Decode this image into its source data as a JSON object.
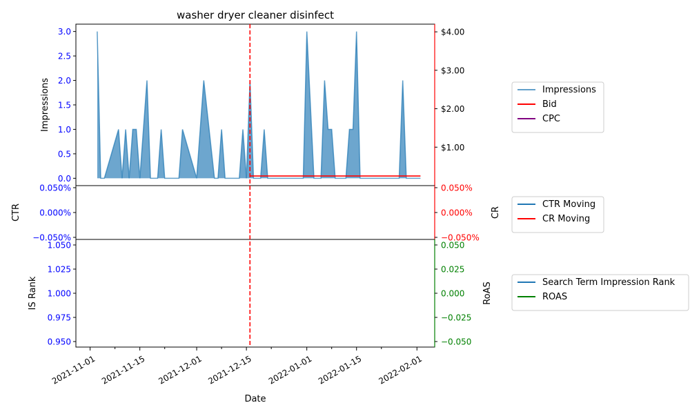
{
  "colors": {
    "impressions": "#1f77b4",
    "bid": "#ff0000",
    "cpc": "#800080",
    "ctr": "#1f77b4",
    "cr": "#ff0000",
    "is_rank": "#1f77b4",
    "roas": "#008000",
    "left_ticks": "#0000ff",
    "right_ticks_top": "#000000",
    "right_ticks_mid": "#ff0000",
    "right_ticks_bottom": "#008000",
    "vline": "#ff0000"
  },
  "chart_data": {
    "type": "line",
    "title": "washer dryer cleaner disinfect",
    "xlabel": "Date",
    "x_ticks": [
      "2021-11-01",
      "2021-11-15",
      "2021-12-01",
      "2021-12-15",
      "2022-01-01",
      "2022-01-15",
      "2022-02-01"
    ],
    "vline_date": "2021-12-16",
    "panels": [
      {
        "id": "top",
        "type": "area",
        "ylabel_left": "Impressions",
        "ylabel_right": "",
        "ylim_left": [
          -0.15,
          3.15
        ],
        "ylim_right": [
          0.0,
          4.2
        ],
        "left_ticks": [
          "0.0",
          "0.5",
          "1.0",
          "1.5",
          "2.0",
          "2.5",
          "3.0"
        ],
        "right_ticks": [
          "$1.00",
          "$2.00",
          "$3.00",
          "$4.00"
        ],
        "right_tick_values": [
          1,
          2,
          3,
          4
        ],
        "series": [
          {
            "name": "Impressions",
            "axis": "left",
            "points": [
              [
                "2021-11-03",
                3
              ],
              [
                "2021-11-04",
                0
              ],
              [
                "2021-11-05",
                0
              ],
              [
                "2021-11-09",
                1
              ],
              [
                "2021-11-10",
                0
              ],
              [
                "2021-11-11",
                1
              ],
              [
                "2021-11-12",
                0
              ],
              [
                "2021-11-13",
                1
              ],
              [
                "2021-11-14",
                1
              ],
              [
                "2021-11-15",
                0
              ],
              [
                "2021-11-17",
                2
              ],
              [
                "2021-11-18",
                0
              ],
              [
                "2021-11-20",
                0
              ],
              [
                "2021-11-21",
                1
              ],
              [
                "2021-11-22",
                0
              ],
              [
                "2021-11-26",
                0
              ],
              [
                "2021-11-27",
                1
              ],
              [
                "2021-12-01",
                0
              ],
              [
                "2021-12-03",
                2
              ],
              [
                "2021-12-06",
                0
              ],
              [
                "2021-12-07",
                0
              ],
              [
                "2021-12-08",
                1
              ],
              [
                "2021-12-09",
                0
              ],
              [
                "2021-12-13",
                0
              ],
              [
                "2021-12-14",
                1
              ],
              [
                "2021-12-15",
                0
              ],
              [
                "2021-12-16",
                2
              ],
              [
                "2021-12-17",
                0
              ],
              [
                "2021-12-19",
                0
              ],
              [
                "2021-12-20",
                1
              ],
              [
                "2021-12-21",
                0
              ],
              [
                "2021-12-31",
                0
              ],
              [
                "2022-01-01",
                3
              ],
              [
                "2022-01-03",
                0
              ],
              [
                "2022-01-05",
                0
              ],
              [
                "2022-01-06",
                2
              ],
              [
                "2022-01-07",
                1
              ],
              [
                "2022-01-08",
                1
              ],
              [
                "2022-01-09",
                0
              ],
              [
                "2022-01-12",
                0
              ],
              [
                "2022-01-13",
                1
              ],
              [
                "2022-01-14",
                1
              ],
              [
                "2022-01-15",
                3
              ],
              [
                "2022-01-16",
                0
              ],
              [
                "2022-01-27",
                0
              ],
              [
                "2022-01-28",
                2
              ],
              [
                "2022-01-29",
                0
              ],
              [
                "2022-02-02",
                0
              ]
            ]
          },
          {
            "name": "Bid",
            "axis": "right",
            "points": [
              [
                "2021-12-16",
                0.25
              ],
              [
                "2022-02-02",
                0.25
              ]
            ]
          },
          {
            "name": "CPC",
            "axis": "right",
            "points": []
          }
        ]
      },
      {
        "id": "middle",
        "type": "line",
        "ylabel_left": "CTR",
        "ylabel_right": "CR",
        "left_ticks": [
          "0.050%",
          "0.000%",
          "−0.050%"
        ],
        "right_ticks": [
          "0.050%",
          "0.000%",
          "−0.050%"
        ],
        "series": [
          {
            "name": "CTR Moving",
            "axis": "left",
            "points": []
          },
          {
            "name": "CR Moving",
            "axis": "right",
            "points": []
          }
        ]
      },
      {
        "id": "bottom",
        "type": "line",
        "ylabel_left": "IS Rank",
        "ylabel_right": "RoAS",
        "left_ticks": [
          "1.050",
          "1.025",
          "1.000",
          "0.975",
          "0.950"
        ],
        "right_ticks": [
          "0.050",
          "0.025",
          "0.000",
          "−0.025",
          "−0.050"
        ],
        "series": [
          {
            "name": "Search Term Impression Rank",
            "axis": "left",
            "points": []
          },
          {
            "name": "ROAS",
            "axis": "right",
            "points": []
          }
        ]
      }
    ],
    "legends": [
      {
        "panel": "top",
        "items": [
          "Impressions",
          "Bid",
          "CPC"
        ]
      },
      {
        "panel": "middle",
        "items": [
          "CTR Moving",
          "CR Moving"
        ]
      },
      {
        "panel": "bottom",
        "items": [
          "Search Term Impression Rank",
          "ROAS"
        ]
      }
    ]
  }
}
